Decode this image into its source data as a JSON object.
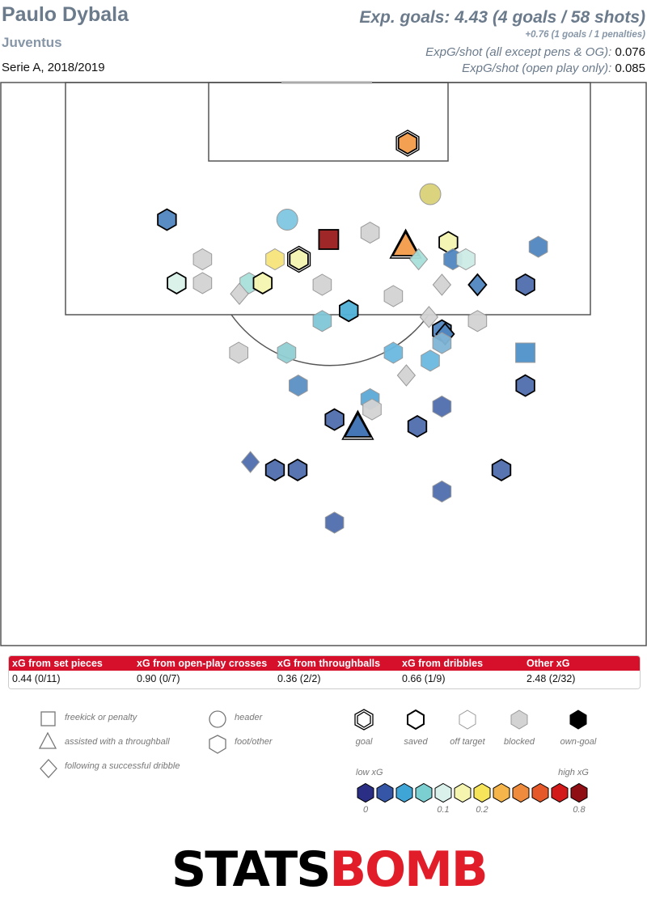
{
  "header": {
    "player": "Paulo Dybala",
    "team": "Juventus",
    "competition": "Serie A, 2018/2019",
    "xg_main": "Exp. goals: 4.43 (4 goals / 58 shots)",
    "xg_pens": "+0.76 (1 goals / 1 penalties)",
    "xg_per_shot_label": "ExpG/shot (all except pens & OG):",
    "xg_per_shot_value": "0.076",
    "xg_open_play_label": "ExpG/shot (open play only):",
    "xg_open_play_value": "0.085"
  },
  "table": {
    "headers": [
      "xG from set pieces",
      "xG from open-play crosses",
      "xG from throughballs",
      "xG from dribbles",
      "Other xG"
    ],
    "values": [
      "0.44 (0/11)",
      "0.90 (0/7)",
      "0.36 (2/2)",
      "0.66 (1/9)",
      "2.48 (2/32)"
    ]
  },
  "legend": {
    "shape_labels": [
      "freekick or penalty",
      "assisted with a throughball",
      "following a successful dribble",
      "header",
      "foot/other"
    ],
    "outcome_labels": [
      "goal",
      "saved",
      "off target",
      "blocked",
      "own-goal"
    ],
    "low_label": "low xG",
    "high_label": "high xG",
    "scale_ticks": [
      "0",
      "0.1",
      "0.2",
      "0.8"
    ],
    "scale_colors": [
      "#2a2e85",
      "#3556a6",
      "#3fa4d6",
      "#7ccfd1",
      "#d9f1ea",
      "#f6f5b0",
      "#f6e45a",
      "#f5b54a",
      "#ef8b3c",
      "#e4582a",
      "#d21a1a",
      "#8f0f14"
    ]
  },
  "logo": {
    "stats": "STATS",
    "bomb": "BOMB"
  },
  "chart_data": {
    "type": "scatter",
    "colors": {
      "set_piece": "#9b1b1b",
      "blocked": "#d3d3d3"
    },
    "shots": [
      {
        "x": 0.63,
        "y": 0.11,
        "shape": "hex",
        "outcome": "goal",
        "color": "#f39b4a"
      },
      {
        "x": 0.665,
        "y": 0.2,
        "shape": "circle",
        "outcome": "off",
        "color": "#d9d176"
      },
      {
        "x": 0.258,
        "y": 0.245,
        "shape": "hex",
        "outcome": "saved",
        "color": "#4f86bf"
      },
      {
        "x": 0.444,
        "y": 0.245,
        "shape": "circle",
        "outcome": "off",
        "color": "#7fc6e0"
      },
      {
        "x": 0.508,
        "y": 0.28,
        "shape": "square",
        "outcome": "saved",
        "color": "#9b1b1b"
      },
      {
        "x": 0.572,
        "y": 0.268,
        "shape": "hex",
        "outcome": "blocked",
        "color": "#d3d3d3"
      },
      {
        "x": 0.627,
        "y": 0.29,
        "shape": "triangle",
        "outcome": "goal",
        "color": "#f39b4a"
      },
      {
        "x": 0.693,
        "y": 0.285,
        "shape": "hex",
        "outcome": "saved",
        "color": "#f3f3b0"
      },
      {
        "x": 0.832,
        "y": 0.293,
        "shape": "hex",
        "outcome": "off",
        "color": "#4f86bf"
      },
      {
        "x": 0.313,
        "y": 0.315,
        "shape": "hex",
        "outcome": "blocked",
        "color": "#d3d3d3"
      },
      {
        "x": 0.425,
        "y": 0.315,
        "shape": "hex",
        "outcome": "off",
        "color": "#f6e47a"
      },
      {
        "x": 0.462,
        "y": 0.315,
        "shape": "hex",
        "outcome": "goal",
        "color": "#f3f3b0"
      },
      {
        "x": 0.647,
        "y": 0.315,
        "shape": "diamond",
        "outcome": "off",
        "color": "#a9e0da"
      },
      {
        "x": 0.7,
        "y": 0.315,
        "shape": "hex",
        "outcome": "off",
        "color": "#4f86bf"
      },
      {
        "x": 0.72,
        "y": 0.315,
        "shape": "hex",
        "outcome": "off",
        "color": "#cdebe5"
      },
      {
        "x": 0.273,
        "y": 0.357,
        "shape": "hex",
        "outcome": "saved",
        "color": "#d9f1ea"
      },
      {
        "x": 0.313,
        "y": 0.357,
        "shape": "hex",
        "outcome": "blocked",
        "color": "#d3d3d3"
      },
      {
        "x": 0.385,
        "y": 0.357,
        "shape": "hex",
        "outcome": "off",
        "color": "#a9e0da"
      },
      {
        "x": 0.406,
        "y": 0.357,
        "shape": "hex",
        "outcome": "saved",
        "color": "#f6f5b0"
      },
      {
        "x": 0.37,
        "y": 0.376,
        "shape": "diamond",
        "outcome": "blocked",
        "color": "#d3d3d3"
      },
      {
        "x": 0.498,
        "y": 0.36,
        "shape": "hex",
        "outcome": "blocked",
        "color": "#d3d3d3"
      },
      {
        "x": 0.683,
        "y": 0.36,
        "shape": "diamond",
        "outcome": "blocked",
        "color": "#d3d3d3"
      },
      {
        "x": 0.738,
        "y": 0.36,
        "shape": "diamond",
        "outcome": "saved",
        "color": "#4f86bf"
      },
      {
        "x": 0.812,
        "y": 0.36,
        "shape": "hex",
        "outcome": "saved",
        "color": "#4f6eae"
      },
      {
        "x": 0.608,
        "y": 0.38,
        "shape": "hex",
        "outcome": "blocked",
        "color": "#d3d3d3"
      },
      {
        "x": 0.539,
        "y": 0.406,
        "shape": "hex",
        "outcome": "saved",
        "color": "#4fb0d6"
      },
      {
        "x": 0.498,
        "y": 0.424,
        "shape": "hex",
        "outcome": "off",
        "color": "#7fc6d6"
      },
      {
        "x": 0.663,
        "y": 0.417,
        "shape": "diamond",
        "outcome": "blocked",
        "color": "#d3d3d3"
      },
      {
        "x": 0.738,
        "y": 0.424,
        "shape": "hex",
        "outcome": "blocked",
        "color": "#d3d3d3"
      },
      {
        "x": 0.683,
        "y": 0.441,
        "shape": "hex",
        "outcome": "saved",
        "color": "#4f86bf"
      },
      {
        "x": 0.688,
        "y": 0.447,
        "shape": "diamond",
        "outcome": "saved",
        "color": "#4f86bf"
      },
      {
        "x": 0.683,
        "y": 0.463,
        "shape": "hex",
        "outcome": "off",
        "color": "#7fb4d6"
      },
      {
        "x": 0.369,
        "y": 0.48,
        "shape": "hex",
        "outcome": "blocked",
        "color": "#d3d3d3"
      },
      {
        "x": 0.443,
        "y": 0.48,
        "shape": "hex",
        "outcome": "off",
        "color": "#8fcfd3"
      },
      {
        "x": 0.608,
        "y": 0.48,
        "shape": "hex",
        "outcome": "off",
        "color": "#6cb8df"
      },
      {
        "x": 0.665,
        "y": 0.494,
        "shape": "hex",
        "outcome": "off",
        "color": "#6cb8df"
      },
      {
        "x": 0.812,
        "y": 0.48,
        "shape": "square",
        "outcome": "off",
        "color": "#4f91c8"
      },
      {
        "x": 0.628,
        "y": 0.52,
        "shape": "diamond",
        "outcome": "blocked",
        "color": "#d3d3d3"
      },
      {
        "x": 0.461,
        "y": 0.538,
        "shape": "hex",
        "outcome": "off",
        "color": "#5b8fc3"
      },
      {
        "x": 0.812,
        "y": 0.538,
        "shape": "hex",
        "outcome": "saved",
        "color": "#4f6eae"
      },
      {
        "x": 0.572,
        "y": 0.562,
        "shape": "hex",
        "outcome": "off",
        "color": "#5ca9d6"
      },
      {
        "x": 0.575,
        "y": 0.58,
        "shape": "hex",
        "outcome": "blocked",
        "color": "#d3d3d3"
      },
      {
        "x": 0.683,
        "y": 0.575,
        "shape": "hex",
        "outcome": "off",
        "color": "#4f6eae"
      },
      {
        "x": 0.517,
        "y": 0.598,
        "shape": "hex",
        "outcome": "saved",
        "color": "#4f6eae"
      },
      {
        "x": 0.553,
        "y": 0.61,
        "shape": "triangle",
        "outcome": "goal",
        "color": "#3b6fb2"
      },
      {
        "x": 0.645,
        "y": 0.61,
        "shape": "hex",
        "outcome": "saved",
        "color": "#4f6eae"
      },
      {
        "x": 0.387,
        "y": 0.673,
        "shape": "diamond",
        "outcome": "off",
        "color": "#4f6eae"
      },
      {
        "x": 0.425,
        "y": 0.687,
        "shape": "hex",
        "outcome": "saved",
        "color": "#4f6eae"
      },
      {
        "x": 0.46,
        "y": 0.687,
        "shape": "hex",
        "outcome": "saved",
        "color": "#4f6eae"
      },
      {
        "x": 0.775,
        "y": 0.687,
        "shape": "hex",
        "outcome": "saved",
        "color": "#4f6eae"
      },
      {
        "x": 0.683,
        "y": 0.725,
        "shape": "hex",
        "outcome": "off",
        "color": "#4f6eae"
      },
      {
        "x": 0.517,
        "y": 0.78,
        "shape": "hex",
        "outcome": "off",
        "color": "#4f6eae"
      }
    ]
  }
}
